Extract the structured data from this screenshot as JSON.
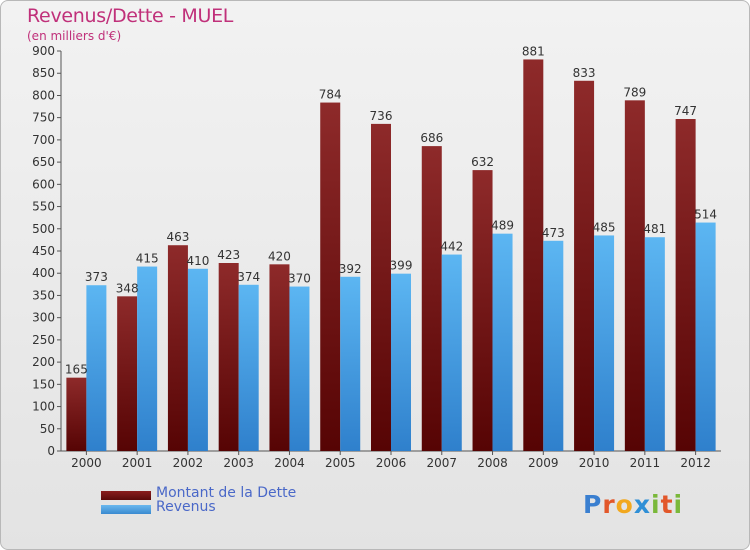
{
  "header": {
    "title": "Revenus/Dette - MUEL",
    "subtitle": "(en milliers d'€)"
  },
  "legend": {
    "debt_label": "Montant de la Dette",
    "revenue_label": "Revenus"
  },
  "logo": {
    "text": "Proxiti",
    "letters": [
      {
        "char": "P",
        "color": "#3a7fd0"
      },
      {
        "char": "r",
        "color": "#e2572a"
      },
      {
        "char": "o",
        "color": "#f2a81e"
      },
      {
        "char": "x",
        "color": "#2f8fd6"
      },
      {
        "char": "i",
        "color": "#7ab83a"
      },
      {
        "char": "t",
        "color": "#e2572a"
      },
      {
        "char": "i",
        "color": "#7ab83a"
      }
    ]
  },
  "colors": {
    "title": "#c0307a",
    "debt": "#7a1a1a",
    "revenue": "#4aa3e6",
    "legend_text": "#4a68c8"
  },
  "chart_data": {
    "type": "bar",
    "title": "Revenus/Dette - MUEL",
    "subtitle": "(en milliers d'€)",
    "xlabel": "",
    "ylabel": "",
    "ylim": [
      0,
      900
    ],
    "yticks": [
      0,
      50,
      100,
      150,
      200,
      250,
      300,
      350,
      400,
      450,
      500,
      550,
      600,
      650,
      700,
      750,
      800,
      850,
      900
    ],
    "grid": false,
    "legend_position": "bottom-left",
    "categories": [
      "2000",
      "2001",
      "2002",
      "2003",
      "2004",
      "2005",
      "2006",
      "2007",
      "2008",
      "2009",
      "2010",
      "2011",
      "2012"
    ],
    "series": [
      {
        "name": "Montant de la Dette",
        "color": "#7a1a1a",
        "values": [
          165,
          348,
          463,
          423,
          420,
          784,
          736,
          686,
          632,
          881,
          833,
          789,
          747
        ]
      },
      {
        "name": "Revenus",
        "color": "#4aa3e6",
        "values": [
          373,
          415,
          410,
          374,
          370,
          392,
          399,
          442,
          489,
          473,
          485,
          481,
          514
        ]
      }
    ]
  }
}
